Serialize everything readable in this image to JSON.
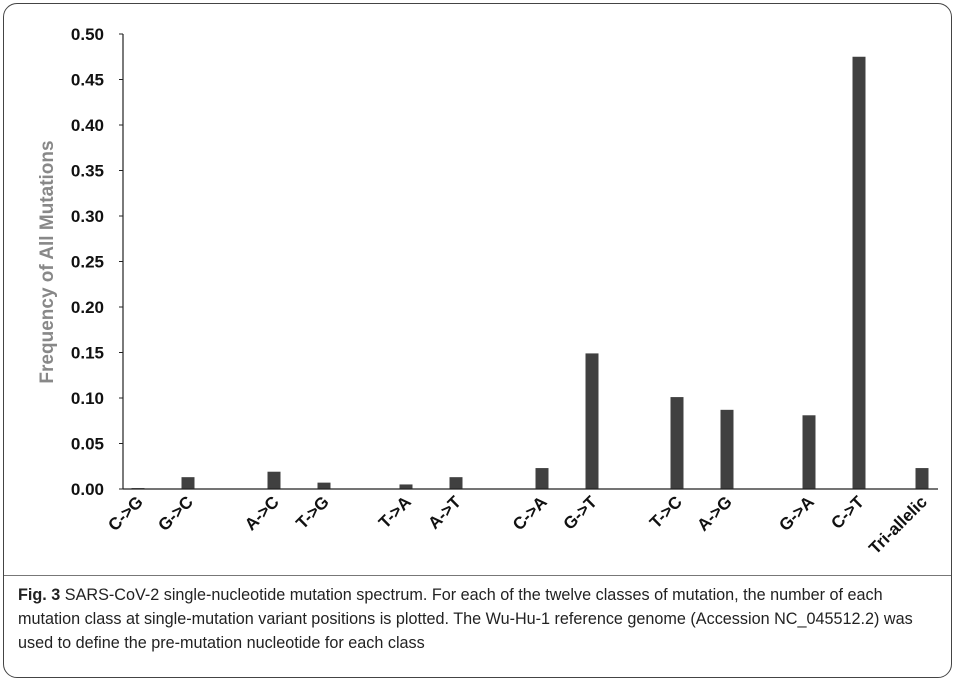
{
  "chart_data": {
    "type": "bar",
    "title": "",
    "xlabel": "",
    "ylabel": "Frequency of All Mutations",
    "ylim": [
      0,
      0.5
    ],
    "yticks": [
      "0.00",
      "0.05",
      "0.10",
      "0.15",
      "0.20",
      "0.25",
      "0.30",
      "0.35",
      "0.40",
      "0.45",
      "0.50"
    ],
    "categories": [
      "C->G",
      "G->C",
      "A->C",
      "T->G",
      "T->A",
      "A->T",
      "C->A",
      "G->T",
      "T->C",
      "A->G",
      "G->A",
      "C->T",
      "Tri-allelic"
    ],
    "values": [
      0.001,
      0.013,
      0.019,
      0.007,
      0.005,
      0.013,
      0.023,
      0.149,
      0.101,
      0.087,
      0.081,
      0.475,
      0.023
    ],
    "bar_color": "#404040",
    "grid": false
  },
  "caption": {
    "label": "Fig. 3",
    "text": " SARS-CoV-2 single-nucleotide mutation spectrum. For each of the twelve classes of mutation, the number of each mutation class at single-mutation variant positions is plotted. The Wu-Hu-1 reference genome (Accession NC_045512.2) was used to define the pre-mutation nucleotide for each class"
  }
}
